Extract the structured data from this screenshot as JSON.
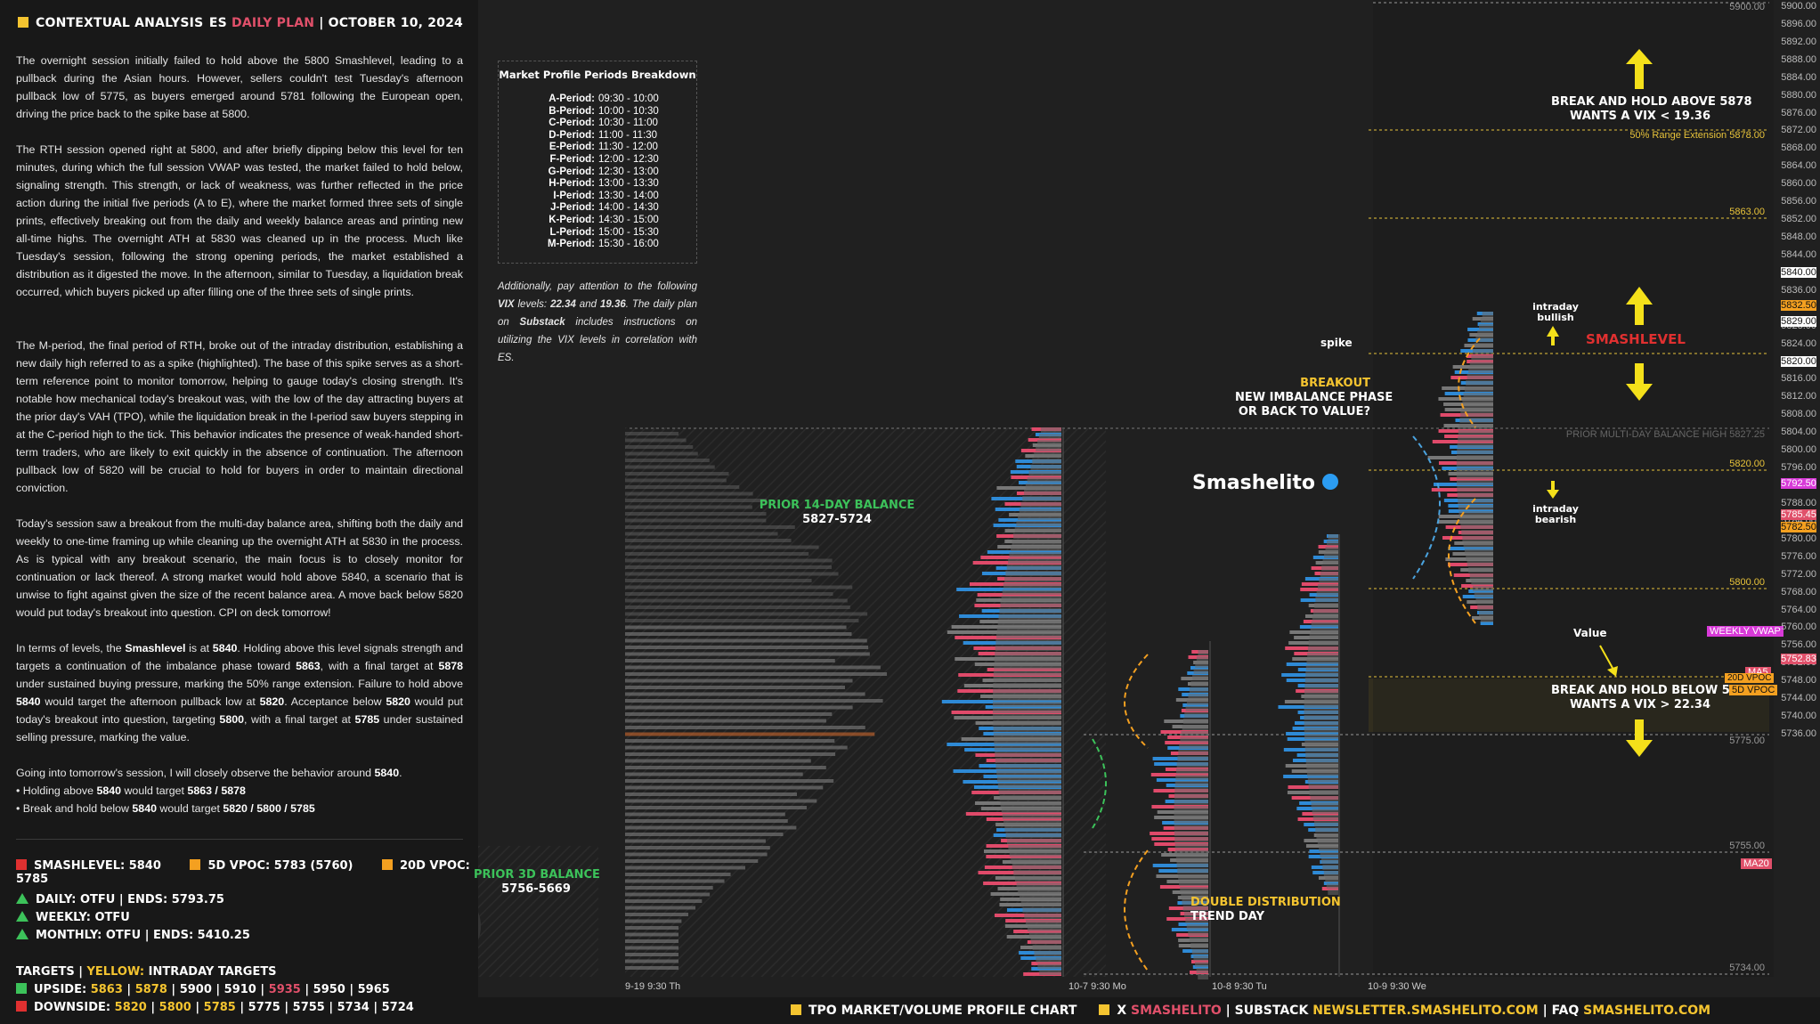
{
  "header": {
    "left": "CONTEXTUAL ANALYSIS",
    "es": "ES",
    "plan": "DAILY PLAN",
    "date": "| OCTOBER 10, 2024"
  },
  "paragraphs": [
    "The overnight session initially failed to hold above the 5800 Smashlevel, leading to a pullback during the Asian hours. However, sellers couldn't test Tuesday's afternoon pullback low of 5775, as buyers emerged around 5781 following the European open, driving the price back to the spike base at 5800.",
    "The RTH session opened right at 5800, and after briefly dipping below this level for ten minutes, during which the full session VWAP was tested, the market failed to hold below, signaling strength. This strength, or lack of weakness, was further reflected in the price action during the initial five periods (A to E), where the market formed three sets of single prints, effectively breaking out from the daily and weekly balance areas and printing new all-time highs. The overnight ATH at 5830 was cleaned up in the process. Much like Tuesday's session, following the strong opening periods, the market established a distribution as it digested the move. In the afternoon, similar to Tuesday, a liquidation break occurred, which buyers picked up after filling one of the three sets of single prints.",
    "The M-period, the final period of RTH, broke out of the intraday distribution, establishing a new daily high referred to as a spike (highlighted). The base of this spike serves as a short-term reference point to monitor tomorrow, helping to gauge today's closing strength. It's notable how mechanical today's breakout was, with the low of the day attracting buyers at the prior day's VAH (TPO), while the liquidation break in the I-period saw buyers stepping in at the C-period high to the tick. This behavior indicates the presence of weak-handed short-term traders, who are likely to exit quickly in the absence of continuation. The afternoon pullback low of 5820 will be crucial to hold for buyers in order to maintain directional conviction.",
    "Today's session saw a breakout from the multi-day balance area, shifting both the daily and weekly to one-time framing up while cleaning up the overnight ATH at 5830 in the process. As is typical with any breakout scenario, the main focus is to closely monitor for continuation or lack thereof. A strong market would hold above 5840, a scenario that is unwise to fight against given the size of the recent balance area. A move back below 5820 would put today's breakout into question. CPI on deck tomorrow!"
  ],
  "levels_para": {
    "p1": "In terms of levels, the ",
    "smash": "Smashlevel",
    "p2": " is at ",
    "v5840": "5840",
    "p3": ". Holding above this level signals strength and targets a continuation of the imbalance phase toward ",
    "v5863": "5863",
    "p4": ", with a final target at ",
    "v5878": "5878",
    "p5": " under sustained buying pressure, marking the 50% range extension. Failure to hold above ",
    "v5840b": "5840",
    "p6": " would target the afternoon pullback low at ",
    "v5820": "5820",
    "p7": ". Acceptance below ",
    "v5820b": "5820",
    "p8": " would put today's breakout into question, targeting ",
    "v5800": "5800",
    "p9": ", with a final target at ",
    "v5785": "5785",
    "p10": " under sustained selling pressure, marking the value."
  },
  "going": {
    "line1a": "Going into tomorrow's session, I will closely observe the behavior around ",
    "line1b": "5840",
    "line1c": ".",
    "b1a": "• Holding above ",
    "b1b": "5840",
    "b1c": " would target ",
    "b1d": "5863 / 5878",
    "b2a": "• Break and hold below ",
    "b2b": "5840",
    "b2c": " would target ",
    "b2d": "5820 / 5800 / 5785"
  },
  "stats": {
    "smashlevel": "SMASHLEVEL: 5840",
    "vpoc5d": "5D VPOC: 5783 (5760)",
    "vpoc20d": "20D VPOC: 5785",
    "daily": "DAILY: OTFU  |  ENDS: 5793.75",
    "weekly": "WEEKLY: OTFU",
    "monthly": "MONTHLY: OTFU  |  ENDS: 5410.25",
    "targets_a": "TARGETS  |  ",
    "targets_b": "YELLOW:",
    "targets_c": " INTRADAY TARGETS",
    "up_label": "UPSIDE: ",
    "up_y1": "5863",
    "up_y2": "5878",
    "up_rest1": "5900  |  5910  |  ",
    "up_p": "5935",
    "up_rest2": "  |  5950  |  5965",
    "dn_label": "DOWNSIDE: ",
    "dn_y1": "5820",
    "dn_y2": "5800",
    "dn_y3": "5785",
    "dn_rest": "5775  |  5755  |  5734  |  5724"
  },
  "periods": {
    "title": "Market Profile Periods Breakdown",
    "rows": [
      {
        "k": "A-Period:",
        "v": "09:30 - 10:00"
      },
      {
        "k": "B-Period:",
        "v": "10:00 - 10:30"
      },
      {
        "k": "C-Period:",
        "v": "10:30 - 11:00"
      },
      {
        "k": "D-Period:",
        "v": "11:00 - 11:30"
      },
      {
        "k": "E-Period:",
        "v": "11:30 - 12:00"
      },
      {
        "k": "F-Period:",
        "v": "12:00 - 12:30"
      },
      {
        "k": "G-Period:",
        "v": "12:30 - 13:00"
      },
      {
        "k": "H-Period:",
        "v": "13:00 - 13:30"
      },
      {
        "k": "I-Period:",
        "v": "13:30 - 14:00"
      },
      {
        "k": "J-Period:",
        "v": "14:00 - 14:30"
      },
      {
        "k": "K-Period:",
        "v": "14:30 - 15:00"
      },
      {
        "k": "L-Period:",
        "v": "15:00 - 15:30"
      },
      {
        "k": "M-Period:",
        "v": "15:30 - 16:00"
      }
    ]
  },
  "vix_note": {
    "a": "Additionally, pay attention to the following ",
    "b": "VIX",
    "c": " levels: ",
    "d": "22.34",
    "e": " and ",
    "f": "19.36",
    "g": ". The daily plan on ",
    "h": "Substack",
    "i": " includes instructions on utilizing the VIX levels in correlation with ES."
  },
  "chart": {
    "balance14_title": "PRIOR 14-DAY BALANCE",
    "balance14_range": "5827-5724",
    "balance3_title": "PRIOR 3D BALANCE",
    "balance3_range": "5756-5669",
    "brand": "Smashelito",
    "breakout1": "BREAKOUT",
    "breakout2": "NEW IMBALANCE PHASE",
    "breakout3": "OR BACK TO VALUE?",
    "spike": "spike",
    "bull1": "intraday",
    "bull2": "bullish",
    "bear1": "intraday",
    "bear2": "bearish",
    "smashlevel": "SMASHLEVEL",
    "above1": "BREAK AND HOLD ABOVE 5878",
    "above2": "WANTS A VIX < 19.36",
    "below1": "BREAK AND HOLD BELOW 5785",
    "below2": "WANTS A VIX > 22.34",
    "value": "Value",
    "double1": "DOUBLE DISTRIBUTION",
    "double2": "TREND DAY",
    "range_ext": "50% Range Extension  5878.00",
    "lvl5863": "5863.00",
    "multi_day": "PRIOR MULTI-DAY BALANCE HIGH  5827.25",
    "lvl5820": "5820.00",
    "lvl5800": "5800.00",
    "lvl5775": "5775.00",
    "lvl5755": "5755.00",
    "lvl5734": "5734.00",
    "lvl5900": "5900.00",
    "dates": [
      "9-19  9:30 Th",
      "10-7  9:30 Mo",
      "10-8  9:30 Tu",
      "10-9  9:30 We"
    ],
    "badges": [
      {
        "t": "5840.00",
        "c": "#ffffff",
        "fg": "#111"
      },
      {
        "t": "5832.50",
        "c": "#f4a020",
        "fg": "#111"
      },
      {
        "t": "5829.00",
        "c": "#ffffff",
        "fg": "#111"
      },
      {
        "t": "5820.00",
        "c": "#ffffff",
        "fg": "#111"
      },
      {
        "t": "5792.50",
        "c": "#d83ad8",
        "fg": "#fff"
      },
      {
        "t": "5785.45",
        "c": "#e0506a",
        "fg": "#fff"
      },
      {
        "t": "5782.50",
        "c": "#f4a020",
        "fg": "#111"
      },
      {
        "t": "5752.83",
        "c": "#e0506a",
        "fg": "#fff"
      }
    ],
    "badge_labels": {
      "weekly_vwap": "WEEKLY VWAP",
      "ma5": "MA5",
      "vpoc5d": "5D VPOC",
      "ma20": "MA20",
      "vpoc20d": "20D VPOC"
    },
    "ticks": [
      "5900.00",
      "5896.00",
      "5892.00",
      "5888.00",
      "5884.00",
      "5880.00",
      "5876.00",
      "5872.00",
      "5868.00",
      "5864.00",
      "5860.00",
      "5856.00",
      "5852.00",
      "5848.00",
      "5844.00",
      "5840.00",
      "5836.00",
      "5832.00",
      "5828.00",
      "5824.00",
      "5820.00",
      "5816.00",
      "5812.00",
      "5808.00",
      "5804.00",
      "5800.00",
      "5796.00",
      "5792.00",
      "5788.00",
      "5784.00",
      "5780.00",
      "5776.00",
      "5772.00",
      "5768.00",
      "5764.00",
      "5760.00",
      "5756.00",
      "5752.00",
      "5748.00",
      "5744.00",
      "5740.00",
      "5736.00"
    ]
  },
  "footer": {
    "a": "TPO MARKET/VOLUME PROFILE CHART",
    "b": "X ",
    "c": "SMASHELITO",
    "d": "  |  SUBSTACK ",
    "e": "NEWSLETTER.SMASHELITO.COM",
    "f": "  |  FAQ ",
    "g": "SMASHELITO.COM"
  }
}
